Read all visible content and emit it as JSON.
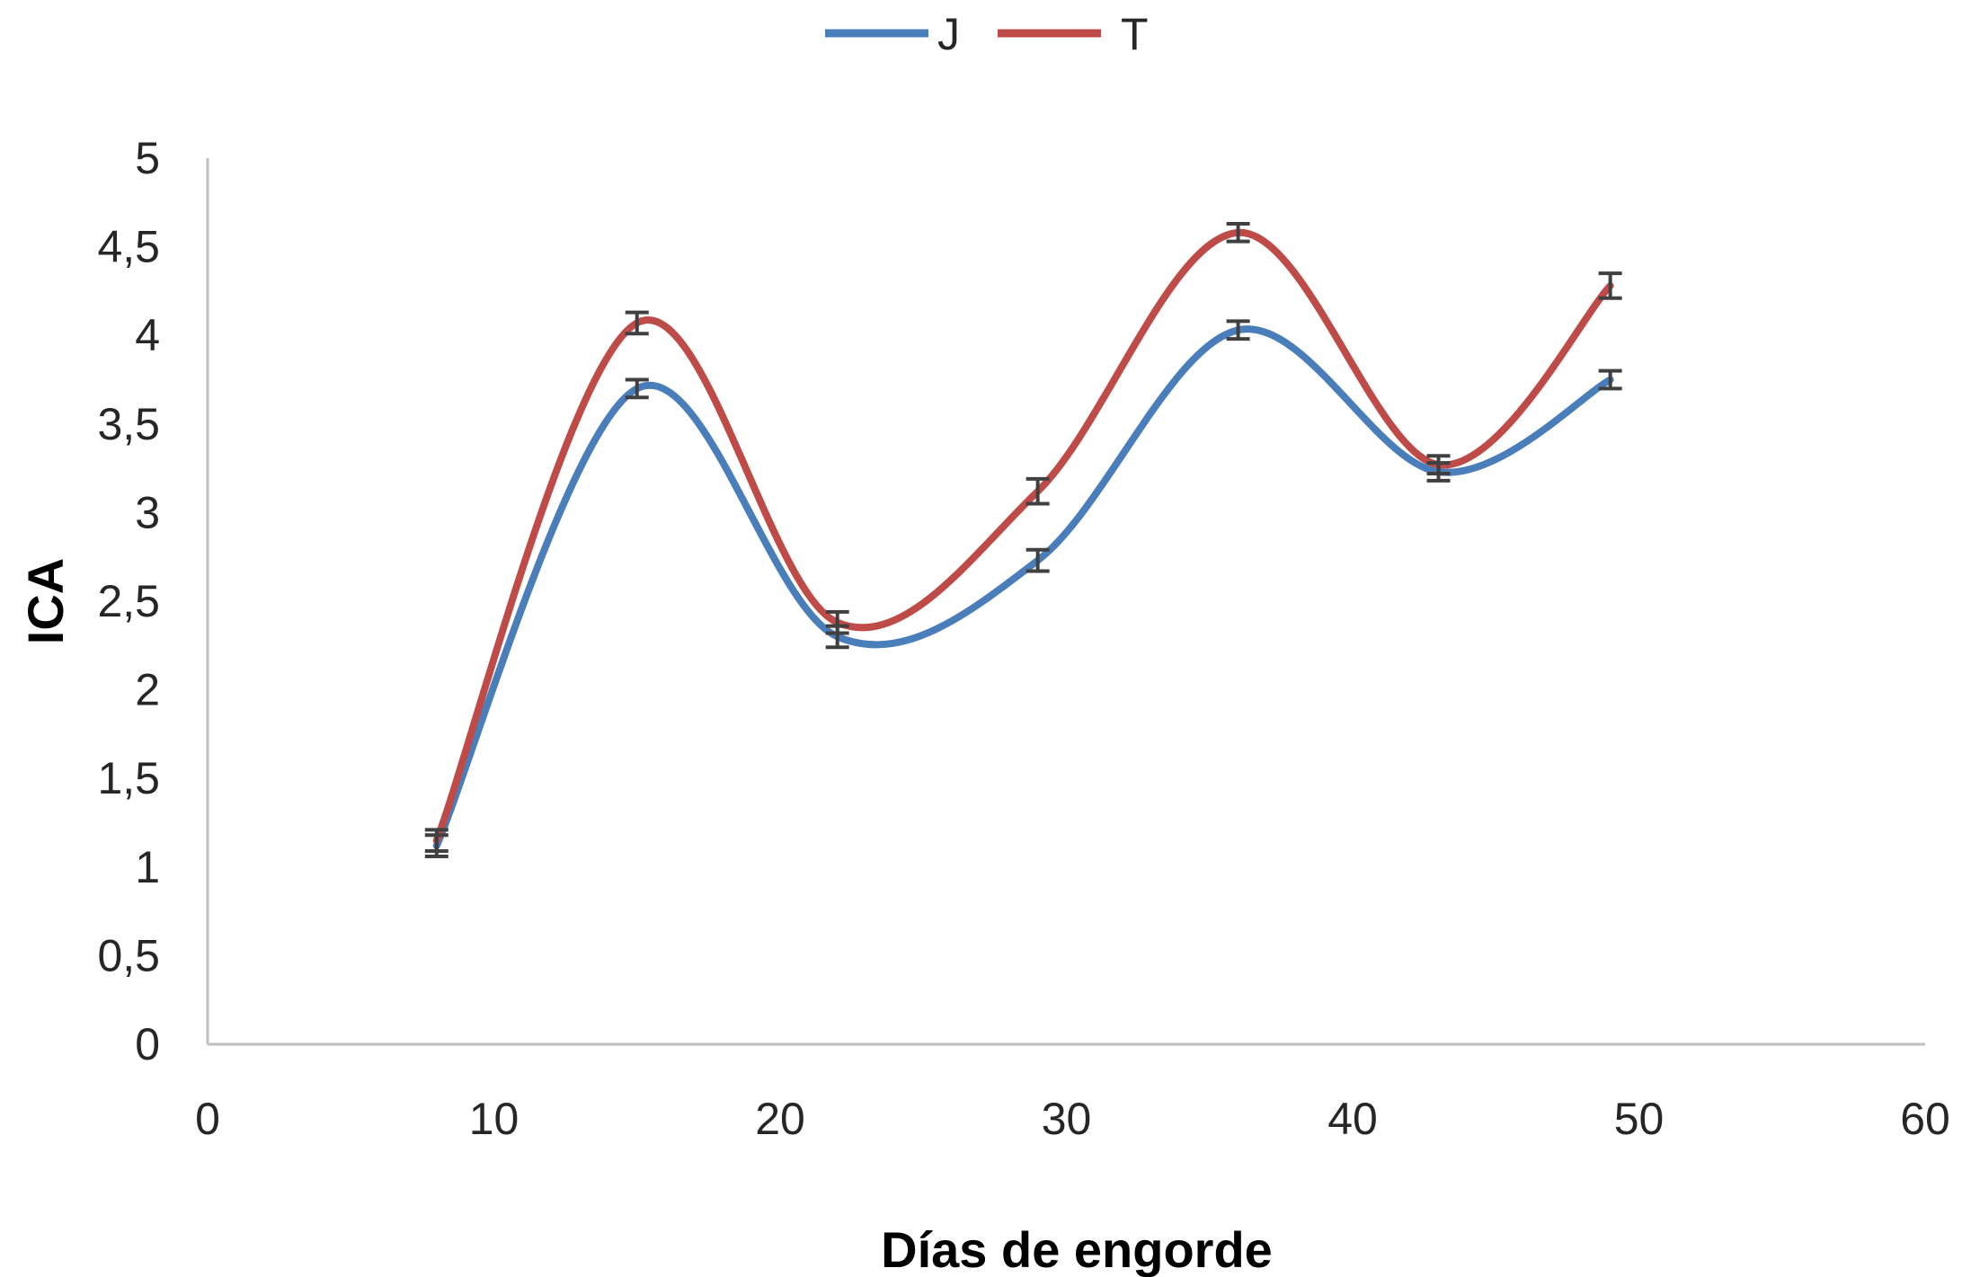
{
  "chart_data": {
    "type": "line",
    "title": "",
    "xlabel": "Días de engorde",
    "ylabel": "ICA",
    "xlim": [
      0,
      60
    ],
    "ylim": [
      0,
      5
    ],
    "x_ticks": [
      "0",
      "10",
      "20",
      "30",
      "40",
      "50",
      "60"
    ],
    "y_ticks": [
      "0",
      "0,5",
      "1",
      "1,5",
      "2",
      "2,5",
      "3",
      "3,5",
      "4",
      "4,5",
      "5"
    ],
    "grid": false,
    "legend_position": "top-center",
    "smooth": true,
    "error_bars": true,
    "x": [
      8,
      15,
      22,
      29,
      36,
      43,
      49
    ],
    "series": [
      {
        "name": "J",
        "color": "#4a7ebb",
        "values": [
          1.12,
          3.7,
          2.3,
          2.73,
          4.03,
          3.23,
          3.75
        ],
        "errors": [
          0.06,
          0.05,
          0.06,
          0.06,
          0.05,
          0.05,
          0.05
        ]
      },
      {
        "name": "T",
        "color": "#be4b48",
        "values": [
          1.15,
          4.07,
          2.38,
          3.12,
          4.58,
          3.27,
          4.28
        ],
        "errors": [
          0.06,
          0.06,
          0.06,
          0.07,
          0.05,
          0.05,
          0.07
        ]
      }
    ]
  }
}
